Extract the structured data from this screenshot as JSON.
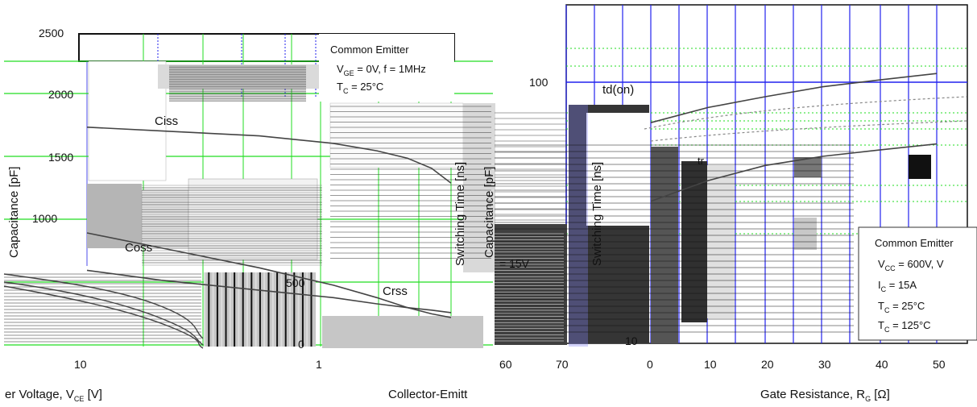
{
  "chart_data": [
    {
      "type": "line",
      "title": "",
      "xlabel_visible": "er Voltage, V",
      "xlabel_sub": "CE",
      "xlabel_unit": " [V]",
      "ylabel_fragment": "Capacitance [pF]",
      "ylim": [
        0,
        2500
      ],
      "y_ticks": [
        "2500",
        "2000",
        "1500",
        "1000",
        "500",
        "0"
      ],
      "x_ticks": [
        "10",
        "1"
      ],
      "x_scale": "log",
      "grid": true,
      "series": [
        {
          "name": "Ciss",
          "x": [
            1,
            2,
            5,
            10,
            15,
            20,
            25,
            30
          ],
          "values": [
            1750,
            1720,
            1680,
            1620,
            1560,
            1500,
            1420,
            1300
          ]
        },
        {
          "name": "Coss",
          "x": [
            1,
            2,
            5,
            10,
            15,
            20,
            25,
            30
          ],
          "values": [
            900,
            780,
            620,
            480,
            380,
            300,
            250,
            220
          ]
        },
        {
          "name": "Crss",
          "x": [
            1,
            2,
            5,
            10,
            15,
            20,
            25,
            30
          ],
          "values": [
            600,
            520,
            440,
            380,
            330,
            300,
            280,
            260
          ]
        }
      ],
      "legend_box": {
        "title": "Common Emitter",
        "line1_main": "V",
        "line1_sub": "GE",
        "line1_rest": " = 0V, f = 1MHz",
        "line2_main": "T",
        "line2_sub": "C",
        "line2_rest": " = 25°C"
      }
    },
    {
      "type": "line",
      "title": "",
      "xlabel": "Collector-Emitt",
      "ylabel_fragment": "Capacitance [pF]",
      "x_ticks": [
        "1"
      ],
      "y_ticks": [
        "500",
        "0"
      ],
      "series": [
        {
          "name": "Crss",
          "x": [
            1,
            5,
            10,
            20,
            30
          ],
          "values": [
            600,
            520,
            470,
            430,
            410
          ]
        }
      ]
    },
    {
      "type": "line",
      "title": "",
      "xlabel_main": "Gate Resistance, R",
      "xlabel_sub": "G",
      "xlabel_unit": " [Ω]",
      "ylabel": "Switching Time [ns]",
      "x_ticks": [
        "0",
        "10",
        "20",
        "30",
        "40",
        "50"
      ],
      "left_x_ticks": [
        "60",
        "70"
      ],
      "y_ticks": [
        "100",
        "10"
      ],
      "y_scale": "log",
      "grid": true,
      "series": [
        {
          "name": "td(on)",
          "x": [
            0,
            10,
            20,
            30,
            40,
            50
          ],
          "values": [
            70,
            80,
            88,
            96,
            102,
            108
          ]
        },
        {
          "name": "tr",
          "x": [
            0,
            10,
            20,
            30,
            40,
            50
          ],
          "values": [
            35,
            42,
            48,
            52,
            55,
            58
          ]
        }
      ],
      "annotation_left": "= 15V",
      "legend_box": {
        "title": "Common Emitter",
        "l1": "V",
        "l1_sub": "CC",
        "l1_rest": " = 600V, V",
        "l2": "I",
        "l2_sub": "C",
        "l2_rest": " = 15A",
        "l3": "T",
        "l3_sub": "C",
        "l3_rest": " = 25°C",
        "l4": "T",
        "l4_sub": "C",
        "l4_rest": " = 125°C"
      }
    }
  ],
  "colors": {
    "grid_green": "#22dd22",
    "grid_blue": "#2222ee",
    "curve": "#444444",
    "gray_block": "#aaaaaa",
    "dark_block": "#333333"
  }
}
